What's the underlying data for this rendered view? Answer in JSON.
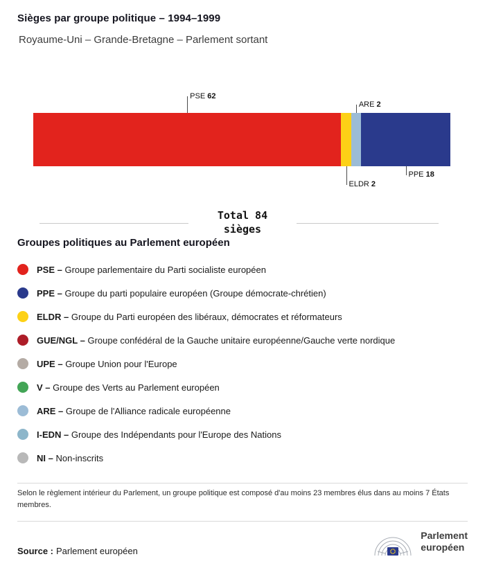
{
  "header": {
    "title": "Sièges par groupe politique – 1994–1999",
    "subtitle": "Royaume-Uni – Grande-Bretagne – Parlement sortant"
  },
  "chart_data": {
    "type": "bar",
    "variant": "horizontal-stacked-seat-bar",
    "title": "Sièges par groupe politique – 1994–1999",
    "subtitle": "Royaume-Uni – Grande-Bretagne – Parlement sortant",
    "total_seats": 84,
    "total_line1": "Total 84",
    "total_line2": "sièges",
    "segments": [
      {
        "group": "PSE",
        "seats": 62,
        "color": "#e2231d",
        "label_side": "above"
      },
      {
        "group": "ELDR",
        "seats": 2,
        "color": "#fdd116",
        "label_side": "below"
      },
      {
        "group": "ARE",
        "seats": 2,
        "color": "#9cbcd6",
        "label_side": "above"
      },
      {
        "group": "PPE",
        "seats": 18,
        "color": "#2a3a8c",
        "label_side": "below"
      }
    ]
  },
  "legend": {
    "heading": "Groupes politiques au Parlement européen",
    "items": [
      {
        "abbr": "PSE –",
        "label": "Groupe parlementaire du Parti socialiste européen",
        "color": "#e2231d"
      },
      {
        "abbr": "PPE –",
        "label": "Groupe du parti populaire européen (Groupe démocrate-chrétien)",
        "color": "#2a3a8c"
      },
      {
        "abbr": "ELDR –",
        "label": "Groupe du Parti européen des libéraux, démocrates et réformateurs",
        "color": "#fdd116"
      },
      {
        "abbr": "GUE/NGL –",
        "label": "Groupe confédéral de la Gauche unitaire européenne/Gauche verte nordique",
        "color": "#ad1d28"
      },
      {
        "abbr": "UPE –",
        "label": "Groupe Union pour l'Europe",
        "color": "#b4aba4"
      },
      {
        "abbr": "V –",
        "label": "Groupe des Verts au Parlement européen",
        "color": "#43a556"
      },
      {
        "abbr": "ARE –",
        "label": "Groupe de l'Alliance radicale européenne",
        "color": "#9cbcd6"
      },
      {
        "abbr": "I-EDN –",
        "label": "Groupe des Indépendants pour l'Europe des Nations",
        "color": "#8db6ca"
      },
      {
        "abbr": "NI –",
        "label": "Non-inscrits",
        "color": "#b8b8b8"
      }
    ]
  },
  "footnote": "Selon le règlement intérieur du Parlement, un groupe politique est composé d'au moins 23 membres élus dans au moins 7 États membres.",
  "source": {
    "label": "Source :",
    "value": "Parlement européen"
  },
  "logo": {
    "text_line1": "Parlement",
    "text_line2": "européen"
  }
}
